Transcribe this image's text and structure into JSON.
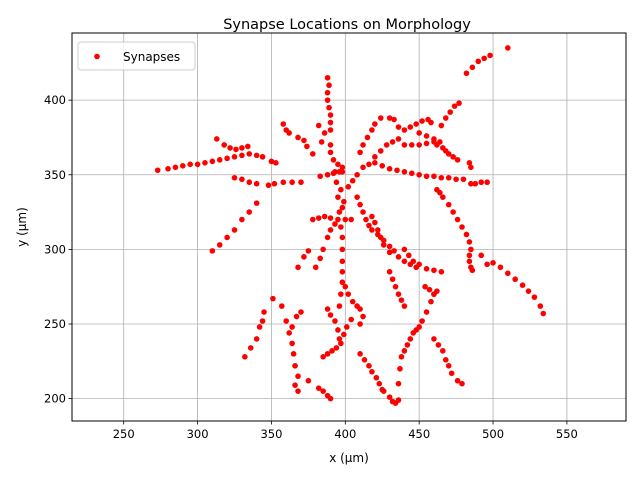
{
  "chart_data": {
    "type": "scatter",
    "title": "Synapse Locations on Morphology",
    "xlabel": "x (µm)",
    "ylabel": "y (µm)",
    "xlim": [
      215,
      590
    ],
    "ylim": [
      185,
      445
    ],
    "xticks": [
      250,
      300,
      350,
      400,
      450,
      500,
      550
    ],
    "yticks": [
      200,
      250,
      300,
      350,
      400
    ],
    "grid": true,
    "legend_position": "top-left",
    "series": [
      {
        "name": "Synapses",
        "color": "#ff0000",
        "marker": "circle",
        "points": [
          [
            273,
            353
          ],
          [
            280,
            354
          ],
          [
            285,
            355
          ],
          [
            290,
            356
          ],
          [
            295,
            357
          ],
          [
            300,
            357
          ],
          [
            305,
            358
          ],
          [
            310,
            359
          ],
          [
            315,
            360
          ],
          [
            320,
            361
          ],
          [
            325,
            362
          ],
          [
            330,
            363
          ],
          [
            335,
            364
          ],
          [
            340,
            363
          ],
          [
            344,
            362
          ],
          [
            313,
            374
          ],
          [
            318,
            370
          ],
          [
            322,
            368
          ],
          [
            326,
            367
          ],
          [
            330,
            368
          ],
          [
            334,
            369
          ],
          [
            310,
            299
          ],
          [
            315,
            303
          ],
          [
            320,
            308
          ],
          [
            325,
            313
          ],
          [
            330,
            320
          ],
          [
            335,
            325
          ],
          [
            340,
            331
          ],
          [
            325,
            348
          ],
          [
            330,
            347
          ],
          [
            335,
            345
          ],
          [
            340,
            344
          ],
          [
            348,
            343
          ],
          [
            352,
            344
          ],
          [
            358,
            345
          ],
          [
            364,
            345
          ],
          [
            370,
            345
          ],
          [
            350,
            359
          ],
          [
            353,
            358
          ],
          [
            351,
            267
          ],
          [
            357,
            262
          ],
          [
            360,
            252
          ],
          [
            362,
            244
          ],
          [
            364,
            237
          ],
          [
            365,
            230
          ],
          [
            366,
            222
          ],
          [
            368,
            215
          ],
          [
            366,
            209
          ],
          [
            368,
            205
          ],
          [
            332,
            228
          ],
          [
            336,
            234
          ],
          [
            340,
            240
          ],
          [
            342,
            248
          ],
          [
            344,
            252
          ],
          [
            345,
            258
          ],
          [
            358,
            384
          ],
          [
            360,
            380
          ],
          [
            362,
            378
          ],
          [
            368,
            375
          ],
          [
            372,
            373
          ],
          [
            374,
            369
          ],
          [
            378,
            364
          ],
          [
            382,
            383
          ],
          [
            386,
            378
          ],
          [
            384,
            372
          ],
          [
            383,
            349
          ],
          [
            388,
            350
          ],
          [
            392,
            351
          ],
          [
            396,
            352
          ],
          [
            398,
            352
          ],
          [
            368,
            288
          ],
          [
            372,
            295
          ],
          [
            375,
            299
          ],
          [
            364,
            248
          ],
          [
            367,
            255
          ],
          [
            370,
            258
          ],
          [
            375,
            212
          ],
          [
            382,
            207
          ],
          [
            385,
            205
          ],
          [
            388,
            202
          ],
          [
            390,
            200
          ],
          [
            378,
            320
          ],
          [
            382,
            321
          ],
          [
            386,
            322
          ],
          [
            390,
            321
          ],
          [
            395,
            320
          ],
          [
            400,
            320
          ],
          [
            404,
            320
          ],
          [
            380,
            288
          ],
          [
            383,
            294
          ],
          [
            385,
            300
          ],
          [
            388,
            308
          ],
          [
            390,
            313
          ],
          [
            393,
            317
          ],
          [
            388,
            415
          ],
          [
            389,
            410
          ],
          [
            388,
            405
          ],
          [
            388,
            400
          ],
          [
            389,
            395
          ],
          [
            390,
            390
          ],
          [
            390,
            385
          ],
          [
            390,
            380
          ],
          [
            390,
            370
          ],
          [
            390,
            365
          ],
          [
            392,
            360
          ],
          [
            395,
            357
          ],
          [
            398,
            355
          ],
          [
            385,
            228
          ],
          [
            388,
            230
          ],
          [
            391,
            232
          ],
          [
            394,
            234
          ],
          [
            397,
            237
          ],
          [
            396,
            240
          ],
          [
            395,
            246
          ],
          [
            388,
            260
          ],
          [
            390,
            256
          ],
          [
            393,
            252
          ],
          [
            396,
            262
          ],
          [
            397,
            270
          ],
          [
            398,
            278
          ],
          [
            398,
            285
          ],
          [
            398,
            292
          ],
          [
            398,
            300
          ],
          [
            398,
            308
          ],
          [
            397,
            315
          ],
          [
            396,
            325
          ],
          [
            395,
            335
          ],
          [
            394,
            345
          ],
          [
            393,
            352
          ],
          [
            397,
            340
          ],
          [
            399,
            332
          ],
          [
            398,
            328
          ],
          [
            400,
            275
          ],
          [
            402,
            270
          ],
          [
            405,
            265
          ],
          [
            408,
            262
          ],
          [
            410,
            260
          ],
          [
            412,
            255
          ],
          [
            410,
            250
          ],
          [
            404,
            253
          ],
          [
            401,
            248
          ],
          [
            399,
            243
          ],
          [
            408,
            335
          ],
          [
            410,
            330
          ],
          [
            412,
            325
          ],
          [
            414,
            320
          ],
          [
            416,
            316
          ],
          [
            418,
            313
          ],
          [
            422,
            310
          ],
          [
            426,
            306
          ],
          [
            430,
            302
          ],
          [
            433,
            299
          ],
          [
            402,
            342
          ],
          [
            405,
            346
          ],
          [
            408,
            350
          ],
          [
            412,
            355
          ],
          [
            416,
            357
          ],
          [
            420,
            358
          ],
          [
            425,
            356
          ],
          [
            430,
            354
          ],
          [
            435,
            353
          ],
          [
            440,
            352
          ],
          [
            445,
            351
          ],
          [
            450,
            350
          ],
          [
            455,
            349
          ],
          [
            460,
            349
          ],
          [
            465,
            348
          ],
          [
            470,
            348
          ],
          [
            475,
            347
          ],
          [
            480,
            347
          ],
          [
            485,
            344
          ],
          [
            488,
            344
          ],
          [
            492,
            345
          ],
          [
            496,
            345
          ],
          [
            420,
            362
          ],
          [
            424,
            366
          ],
          [
            428,
            370
          ],
          [
            432,
            372
          ],
          [
            436,
            374
          ],
          [
            410,
            365
          ],
          [
            412,
            370
          ],
          [
            415,
            375
          ],
          [
            418,
            380
          ],
          [
            420,
            384
          ],
          [
            424,
            388
          ],
          [
            430,
            388
          ],
          [
            433,
            387
          ],
          [
            436,
            382
          ],
          [
            440,
            380
          ],
          [
            444,
            382
          ],
          [
            448,
            384
          ],
          [
            452,
            386
          ],
          [
            456,
            387
          ],
          [
            458,
            385
          ],
          [
            440,
            370
          ],
          [
            445,
            370
          ],
          [
            450,
            370
          ],
          [
            455,
            371
          ],
          [
            460,
            372
          ],
          [
            462,
            370
          ],
          [
            465,
            383
          ],
          [
            468,
            388
          ],
          [
            471,
            392
          ],
          [
            474,
            396
          ],
          [
            477,
            398
          ],
          [
            450,
            378
          ],
          [
            455,
            376
          ],
          [
            460,
            374
          ],
          [
            464,
            372
          ],
          [
            466,
            368
          ],
          [
            468,
            366
          ],
          [
            470,
            364
          ],
          [
            473,
            362
          ],
          [
            476,
            360
          ],
          [
            484,
            358
          ],
          [
            485,
            355
          ],
          [
            418,
            322
          ],
          [
            420,
            318
          ],
          [
            422,
            313
          ],
          [
            424,
            308
          ],
          [
            426,
            303
          ],
          [
            430,
            298
          ],
          [
            436,
            295
          ],
          [
            440,
            292
          ],
          [
            444,
            290
          ],
          [
            450,
            290
          ],
          [
            455,
            287
          ],
          [
            460,
            286
          ],
          [
            465,
            285
          ],
          [
            430,
            285
          ],
          [
            432,
            280
          ],
          [
            434,
            275
          ],
          [
            436,
            270
          ],
          [
            438,
            266
          ],
          [
            440,
            262
          ],
          [
            426,
            205
          ],
          [
            430,
            201
          ],
          [
            432,
            198
          ],
          [
            434,
            197
          ],
          [
            436,
            199
          ],
          [
            436,
            210
          ],
          [
            437,
            220
          ],
          [
            438,
            228
          ],
          [
            440,
            232
          ],
          [
            442,
            236
          ],
          [
            444,
            240
          ],
          [
            446,
            244
          ],
          [
            448,
            246
          ],
          [
            450,
            248
          ],
          [
            452,
            252
          ],
          [
            455,
            258
          ],
          [
            458,
            265
          ],
          [
            460,
            270
          ],
          [
            462,
            272
          ],
          [
            454,
            275
          ],
          [
            457,
            273
          ],
          [
            460,
            270
          ],
          [
            440,
            300
          ],
          [
            443,
            296
          ],
          [
            446,
            292
          ],
          [
            448,
            288
          ],
          [
            410,
            230
          ],
          [
            413,
            226
          ],
          [
            416,
            222
          ],
          [
            418,
            218
          ],
          [
            421,
            214
          ],
          [
            423,
            210
          ],
          [
            425,
            206
          ],
          [
            460,
            240
          ],
          [
            463,
            236
          ],
          [
            466,
            232
          ],
          [
            468,
            226
          ],
          [
            470,
            222
          ],
          [
            472,
            217
          ],
          [
            476,
            212
          ],
          [
            479,
            210
          ],
          [
            462,
            340
          ],
          [
            464,
            338
          ],
          [
            466,
            335
          ],
          [
            470,
            330
          ],
          [
            473,
            325
          ],
          [
            476,
            320
          ],
          [
            479,
            315
          ],
          [
            482,
            310
          ],
          [
            484,
            305
          ],
          [
            485,
            300
          ],
          [
            484,
            296
          ],
          [
            484,
            292
          ],
          [
            485,
            288
          ],
          [
            486,
            286
          ],
          [
            492,
            296
          ],
          [
            496,
            290
          ],
          [
            500,
            291
          ],
          [
            505,
            288
          ],
          [
            510,
            284
          ],
          [
            515,
            280
          ],
          [
            520,
            276
          ],
          [
            524,
            272
          ],
          [
            528,
            268
          ],
          [
            532,
            262
          ],
          [
            534,
            257
          ],
          [
            482,
            418
          ],
          [
            486,
            422
          ],
          [
            490,
            426
          ],
          [
            494,
            428
          ],
          [
            498,
            430
          ],
          [
            510,
            435
          ]
        ]
      }
    ]
  }
}
